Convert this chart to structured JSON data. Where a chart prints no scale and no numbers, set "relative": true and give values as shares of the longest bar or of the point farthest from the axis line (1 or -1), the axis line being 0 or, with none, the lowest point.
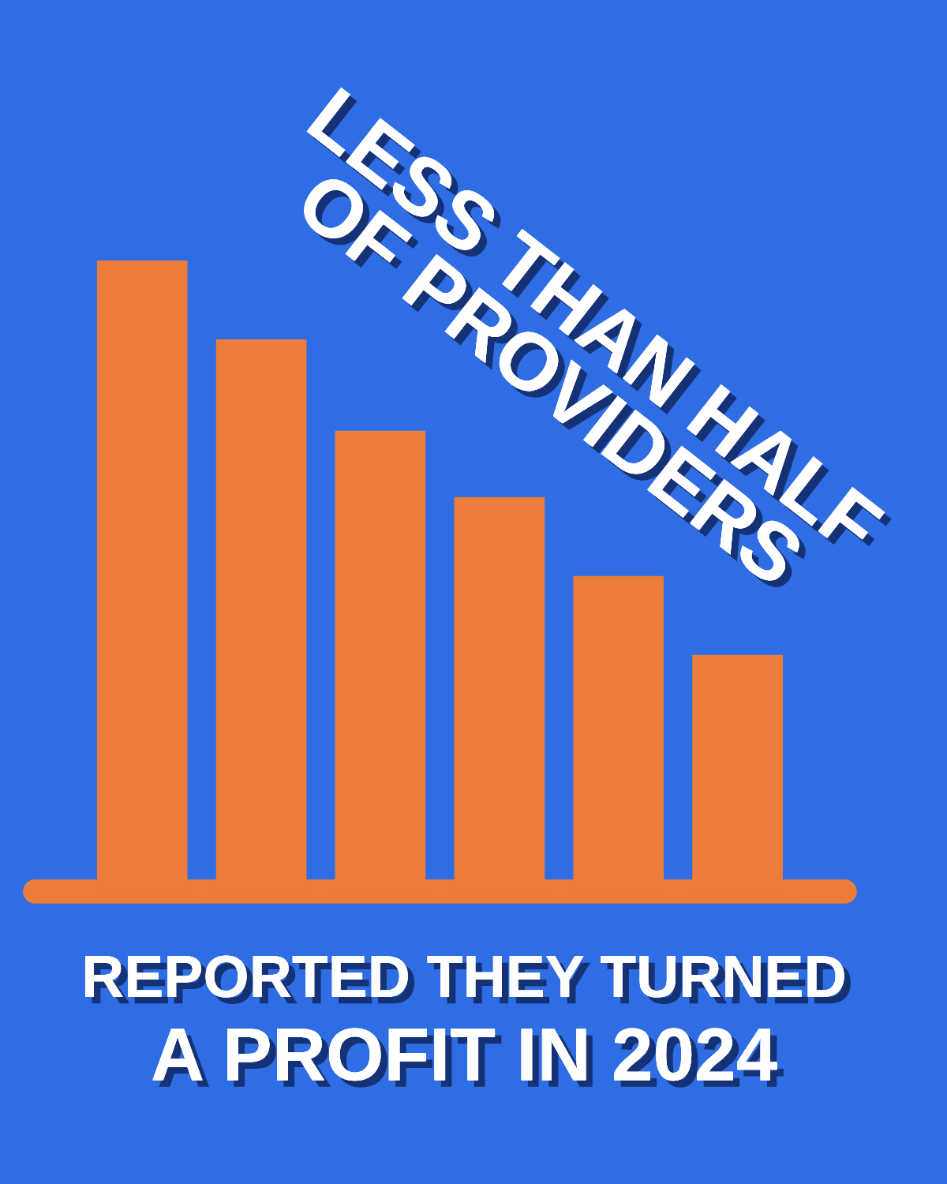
{
  "chart_data": {
    "type": "bar",
    "title": "LESS THAN HALF\nOF PROVIDERS",
    "subtitle": "REPORTED THEY TURNED",
    "annotations": [
      "A PROFIT IN 2024"
    ],
    "categories": [
      null,
      null,
      null,
      null,
      null,
      null
    ],
    "values": [
      1,
      0.875,
      0.73,
      0.625,
      0.5,
      0.375
    ],
    "color": "#ed7d3a",
    "relative": true,
    "grid": false,
    "legend": false
  }
}
